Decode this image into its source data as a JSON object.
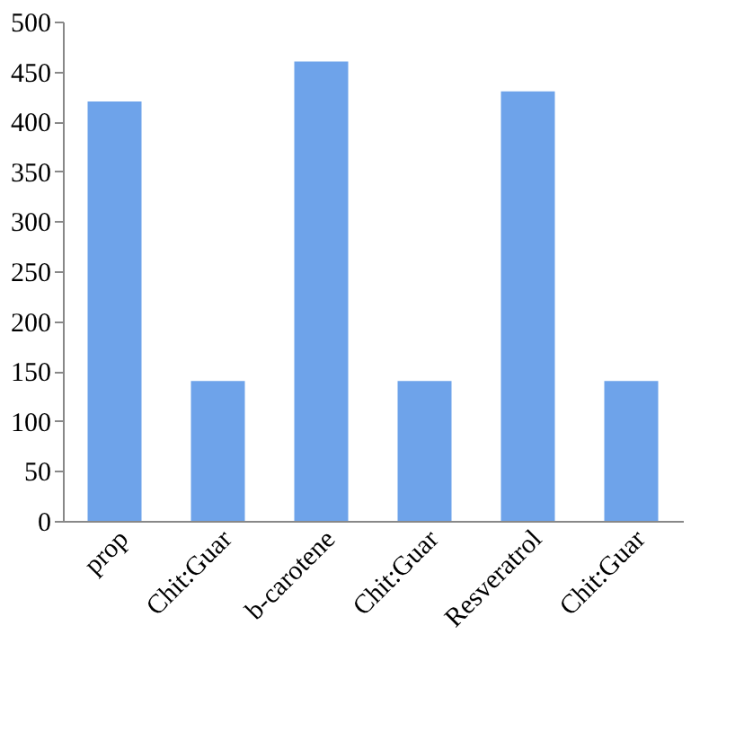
{
  "chart_data": {
    "type": "bar",
    "categories": [
      "prop",
      "Chit:Guar",
      "b-carotene",
      "Chit:Guar",
      "Resveratrol",
      "Chit:Guar"
    ],
    "values": [
      420,
      140,
      460,
      140,
      430,
      140
    ],
    "color": "#6ea3ea",
    "ylim": [
      0,
      500
    ],
    "yticks": [
      0,
      50,
      100,
      150,
      200,
      250,
      300,
      350,
      400,
      450,
      500
    ],
    "grid": false
  }
}
